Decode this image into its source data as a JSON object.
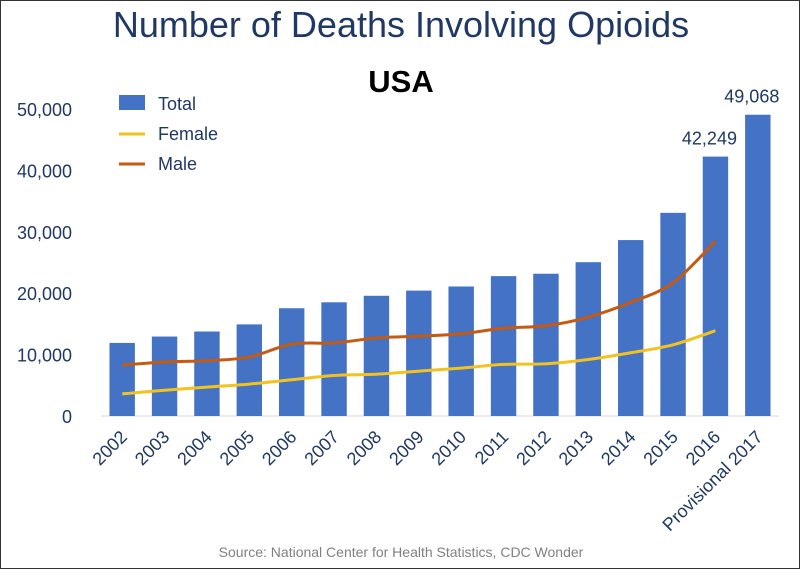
{
  "chart_data": {
    "type": "bar",
    "title": "Number of Deaths Involving Opioids",
    "subtitle": "USA",
    "categories": [
      "2002",
      "2003",
      "2004",
      "2005",
      "2006",
      "2007",
      "2008",
      "2009",
      "2010",
      "2011",
      "2012",
      "2013",
      "2014",
      "2015",
      "2016",
      "Provisional 2017"
    ],
    "ylim": [
      0,
      50000
    ],
    "yticks": [
      "0",
      "10,000",
      "20,000",
      "30,000",
      "40,000",
      "50,000"
    ],
    "ytick_values": [
      0,
      10000,
      20000,
      30000,
      40000,
      50000
    ],
    "grid": false,
    "legend_position": "top-left",
    "series": [
      {
        "name": "Total",
        "kind": "bar",
        "color": "#4472c4",
        "values": [
          11900,
          12940,
          13760,
          14920,
          17550,
          18520,
          19580,
          20420,
          21090,
          22780,
          23170,
          25050,
          28650,
          33090,
          42249,
          49068
        ]
      },
      {
        "name": "Female",
        "kind": "line",
        "color": "#f2c21f",
        "values": [
          3600,
          4200,
          4700,
          5200,
          5900,
          6600,
          6800,
          7300,
          7800,
          8400,
          8500,
          9200,
          10300,
          11600,
          13900,
          null
        ]
      },
      {
        "name": "Male",
        "kind": "line",
        "color": "#c55a11",
        "values": [
          8300,
          8800,
          9000,
          9600,
          11700,
          11900,
          12700,
          13000,
          13400,
          14300,
          14700,
          16100,
          18500,
          21700,
          28500,
          null
        ]
      }
    ],
    "data_labels": [
      {
        "category": "2016",
        "text": "42,249"
      },
      {
        "category": "Provisional 2017",
        "text": "49,068"
      }
    ],
    "source": "Source: National Center for Health Statistics, CDC Wonder"
  }
}
